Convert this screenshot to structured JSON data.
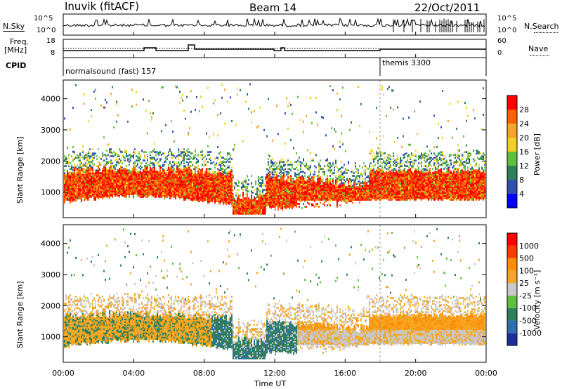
{
  "header": {
    "station": "Inuvik (fitACF)",
    "beam": "Beam 14",
    "date": "22/Oct/2011"
  },
  "noise_panel": {
    "left_label": "N.Sky",
    "right_label": "N.Search",
    "left_ticks": [
      "10^5",
      "10^0"
    ],
    "right_ticks": [
      "10^5",
      "10^0"
    ]
  },
  "freq_panel": {
    "left_label_1": "Freq.",
    "left_label_2": "[MHz]",
    "right_label": "Nave",
    "left_ticks": [
      "18",
      "8"
    ],
    "right_ticks": [
      "60",
      "0"
    ]
  },
  "cpid_panel": {
    "label": "CPID",
    "mode_1": "normalsound (fast) 157",
    "mode_2": "themis 3300"
  },
  "chart_data": [
    {
      "type": "heatmap",
      "name": "power",
      "ylabel": "Slant Range [km]",
      "yticks": [
        1000,
        2000,
        3000,
        4000
      ],
      "ylim": [
        180,
        4600
      ],
      "colorbar_label": "Power [dB]",
      "colorbar_ticks": [
        "28",
        "24",
        "20",
        "16",
        "12",
        "8",
        "4"
      ],
      "colors": [
        "#0000ff",
        "#3050b0",
        "#2e7f5a",
        "#5fbf3f",
        "#f0d020",
        "#f5a623",
        "#ff6000",
        "#ff0000"
      ]
    },
    {
      "type": "heatmap",
      "name": "velocity",
      "ylabel": "Slant Range [km]",
      "yticks": [
        1000,
        2000,
        3000,
        4000
      ],
      "ylim": [
        180,
        4600
      ],
      "colorbar_label": "Velocity [m s⁻¹]",
      "colorbar_ticks": [
        "1000",
        "500",
        "100",
        "25",
        "-25",
        "-100",
        "-500",
        "-1000"
      ],
      "colors": [
        "#1a2f9a",
        "#2e6fae",
        "#2e7f5a",
        "#5fbf3f",
        "#c8c8c8",
        "#f5a623",
        "#ff8c00",
        "#ff3a00",
        "#ff0000"
      ]
    }
  ],
  "x_axis": {
    "label": "Time UT",
    "ticks": [
      "00:00",
      "04:00",
      "08:00",
      "12:00",
      "16:00",
      "20:00",
      "00:00"
    ]
  }
}
